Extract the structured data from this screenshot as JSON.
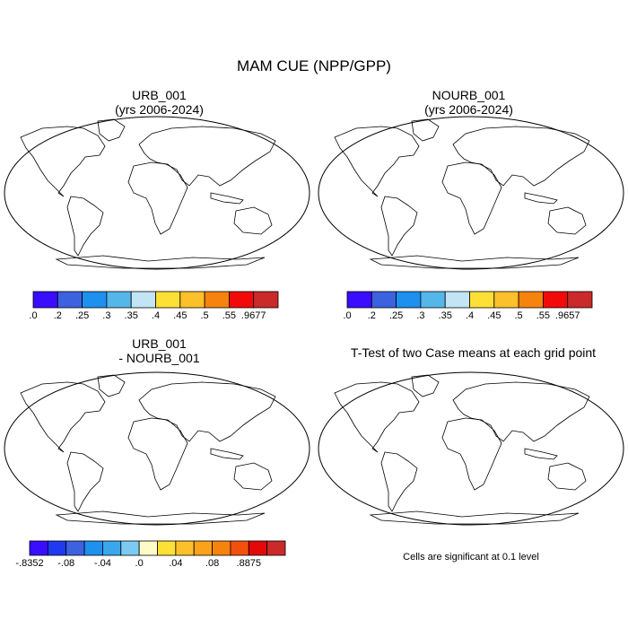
{
  "figure": {
    "title": "MAM CUE (NPP/GPP)"
  },
  "panels": {
    "urb": {
      "title": "URB_001\n(yrs 2006-2024)"
    },
    "nourb": {
      "title": "NOURB_001\n(yrs 2006-2024)"
    },
    "diff": {
      "title": "URB_001\n- NOURB_001"
    },
    "ttest": {
      "title": "T-Test of two Case means at each grid point",
      "note": "Cells are significant at 0.1 level"
    }
  },
  "colorbars": {
    "urb": {
      "colors": [
        "#3a0dff",
        "#3d62e0",
        "#1e90ee",
        "#55b6ea",
        "#c2e4f5",
        "#fde035",
        "#fcc02a",
        "#f6830e",
        "#f20a08",
        "#cb2a2a"
      ],
      "labels": [
        ".0",
        ".2",
        ".25",
        ".3",
        ".35",
        ".4",
        ".45",
        ".5",
        ".55",
        ".9677"
      ]
    },
    "nourb": {
      "colors": [
        "#3a0dff",
        "#3d62e0",
        "#1e90ee",
        "#55b6ea",
        "#c2e4f5",
        "#fde035",
        "#fcc02a",
        "#f6830e",
        "#f20a08",
        "#cb2a2a"
      ],
      "labels": [
        ".0",
        ".2",
        ".25",
        ".3",
        ".35",
        ".4",
        ".45",
        ".5",
        ".55",
        ".9657"
      ]
    },
    "diff": {
      "colors": [
        "#3a0dff",
        "#1f3af0",
        "#3d62e0",
        "#1e90ee",
        "#3aa6ec",
        "#7ccaf2",
        "#fffbc8",
        "#fde035",
        "#fcc02a",
        "#f9a21a",
        "#f6830e",
        "#f2500c",
        "#e30909",
        "#cb2a2a"
      ],
      "labels": [
        "-.8352",
        "-.08",
        "-.04",
        ".0",
        ".04",
        ".08",
        ".8875"
      ]
    }
  }
}
